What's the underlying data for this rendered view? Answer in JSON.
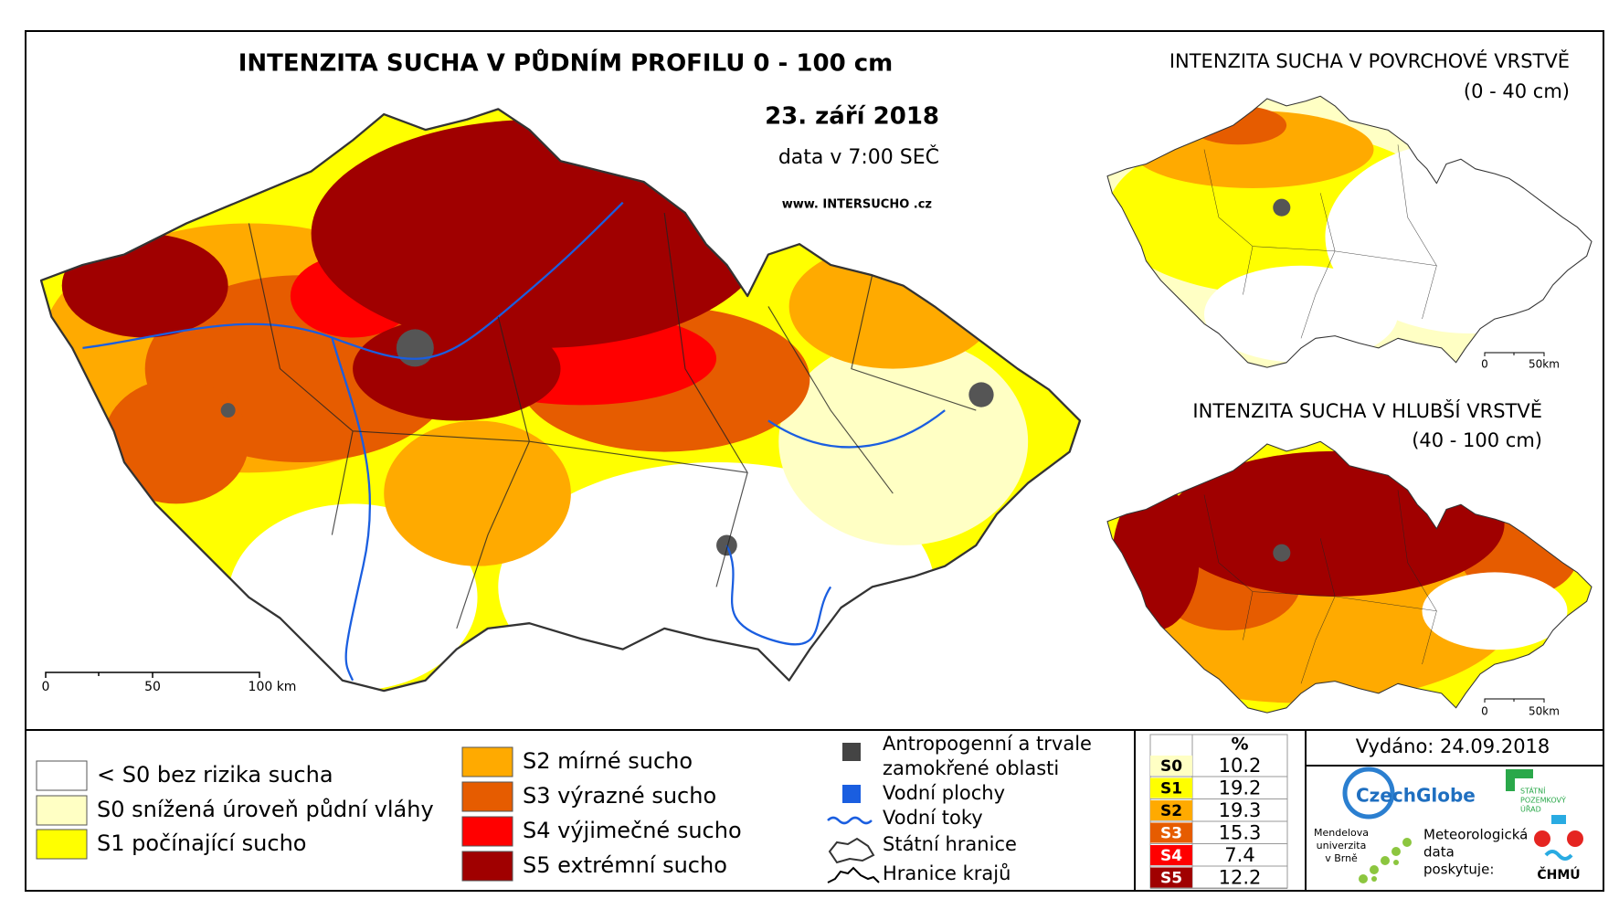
{
  "main_map": {
    "title": "INTENZITA SUCHA V PŮDNÍM PROFILU 0 - 100 cm",
    "date": "23. září 2018",
    "data_time": "data v 7:00 SEČ",
    "website": "www. INTERSUCHO .cz",
    "scale_labels": [
      "0",
      "50",
      "100 km"
    ]
  },
  "inset_maps": [
    {
      "title": "INTENZITA SUCHA V POVRCHOVÉ VRSTVĚ",
      "subtitle": "(0 - 40 cm)",
      "scale_labels": [
        "0",
        "50km"
      ]
    },
    {
      "title": "INTENZITA SUCHA V HLUBŠÍ VRSTVĚ",
      "subtitle": "(40 - 100 cm)",
      "scale_labels": [
        "0",
        "50km"
      ]
    }
  ],
  "legend": {
    "drought_classes": [
      {
        "label": "< S0 bez rizika sucha",
        "color": "#ffffff"
      },
      {
        "label": "S0 snížená úroveň půdní vláhy",
        "color": "#ffffc4"
      },
      {
        "label": "S1 počínající sucho",
        "color": "#ffff00"
      },
      {
        "label": "S2 mírné sucho",
        "color": "#ffaa00"
      },
      {
        "label": "S3 výrazné sucho",
        "color": "#e65c00"
      },
      {
        "label": "S4 výjimečné sucho",
        "color": "#ff0000"
      },
      {
        "label": "S5 extrémní sucho",
        "color": "#a00000"
      }
    ],
    "features": [
      "Antropogenní a trvale",
      "zamokřené oblasti",
      "Vodní plochy",
      "Vodní toky",
      "Státní hranice",
      "Hranice krajů"
    ]
  },
  "stats_table": {
    "header": "%",
    "rows": [
      [
        "S0",
        10.2
      ],
      [
        "S1",
        19.2
      ],
      [
        "S2",
        19.3
      ],
      [
        "S3",
        15.3
      ],
      [
        "S4",
        7.4
      ],
      [
        "S5",
        12.2
      ]
    ]
  },
  "footer": {
    "issued": "Vydáno: 24.09.2018",
    "providers": [
      "CzechGlobe",
      "Mendelova",
      "univerzita",
      "v Brně",
      "STÁTNÍ",
      "POZEMKOVÝ",
      "ÚŘAD",
      "Meteorologická",
      "data",
      "poskytuje:",
      "ČHMÚ"
    ]
  }
}
